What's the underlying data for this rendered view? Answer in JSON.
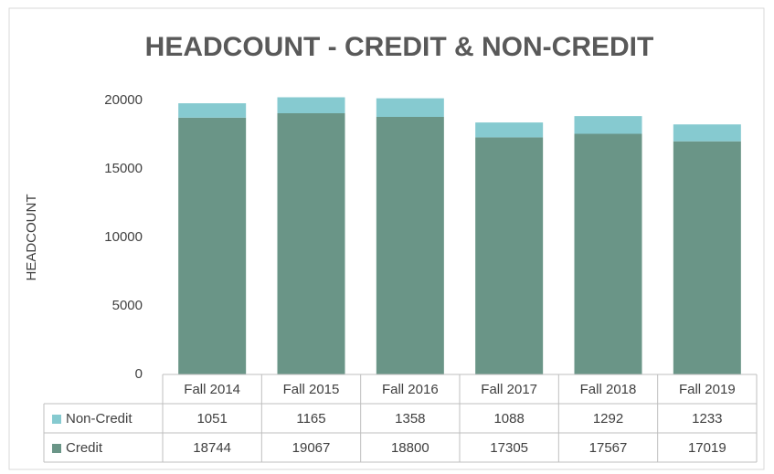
{
  "chart_data": {
    "type": "bar",
    "stacked": true,
    "title": "HEADCOUNT - CREDIT & NON-CREDIT",
    "y_label": "HEADCOUNT",
    "categories": [
      "Fall 2014",
      "Fall 2015",
      "Fall 2016",
      "Fall 2017",
      "Fall 2018",
      "Fall 2019"
    ],
    "series": [
      {
        "name": "Non-Credit",
        "color": "#86cad0",
        "values": [
          1051,
          1165,
          1358,
          1088,
          1292,
          1233
        ]
      },
      {
        "name": "Credit",
        "color": "#6a9587",
        "values": [
          18744,
          19067,
          18800,
          17305,
          17567,
          17019
        ]
      }
    ],
    "ylim": [
      0,
      20000
    ],
    "yticks": [
      0,
      5000,
      10000,
      15000,
      20000
    ],
    "grid": false,
    "data_table": true
  }
}
